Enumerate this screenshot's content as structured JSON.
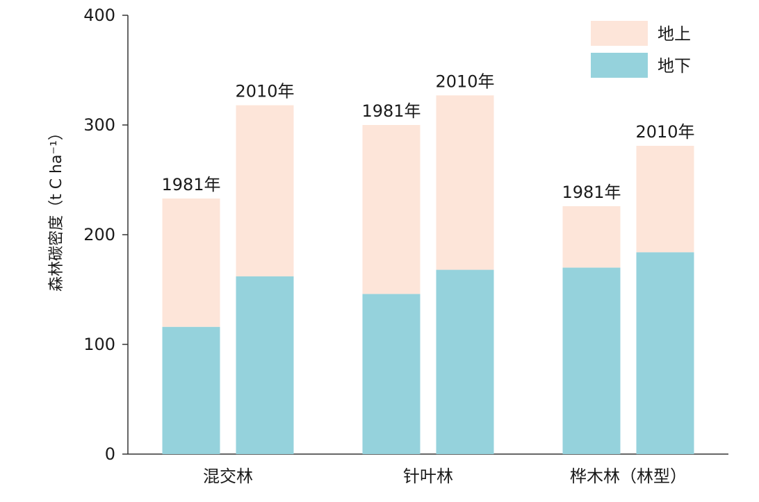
{
  "chart_data": {
    "type": "bar",
    "stacked": true,
    "ylabel": "森林碳密度（t C ha⁻¹）",
    "ylim": [
      0,
      400
    ],
    "yticks": [
      0,
      100,
      200,
      300,
      400
    ],
    "groups": [
      {
        "name": "混交林",
        "bars": [
          {
            "label": "1981年",
            "below": 116,
            "above": 117
          },
          {
            "label": "2010年",
            "below": 162,
            "above": 156
          }
        ]
      },
      {
        "name": "针叶林",
        "bars": [
          {
            "label": "1981年",
            "below": 146,
            "above": 154
          },
          {
            "label": "2010年",
            "below": 168,
            "above": 159
          }
        ]
      },
      {
        "name": "桦木林（林型）",
        "bars": [
          {
            "label": "1981年",
            "below": 170,
            "above": 56
          },
          {
            "label": "2010年",
            "below": 184,
            "above": 97
          }
        ]
      }
    ],
    "series": [
      {
        "name": "地上",
        "key": "above",
        "color": "#fde5d9"
      },
      {
        "name": "地下",
        "key": "below",
        "color": "#95d2dc"
      }
    ],
    "legend_position": "top-right",
    "grid": false
  }
}
